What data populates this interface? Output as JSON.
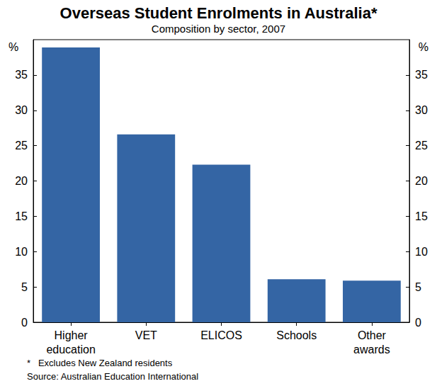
{
  "chart_data": {
    "type": "bar",
    "title": "Overseas Student Enrolments in Australia*",
    "subtitle": "Composition by sector, 2007",
    "ylabel": "%",
    "categories": [
      "Higher\neducation",
      "VET",
      "ELICOS",
      "Schools",
      "Other\nawards"
    ],
    "values": [
      38.9,
      26.6,
      22.3,
      6.1,
      5.9
    ],
    "color": "#3465a4",
    "ylim": [
      0,
      40
    ],
    "yticks": [
      0,
      5,
      10,
      15,
      20,
      25,
      30,
      35
    ],
    "grid": false,
    "notes": [
      "*   Excludes New Zealand residents",
      "Source: Australian Education International"
    ]
  }
}
